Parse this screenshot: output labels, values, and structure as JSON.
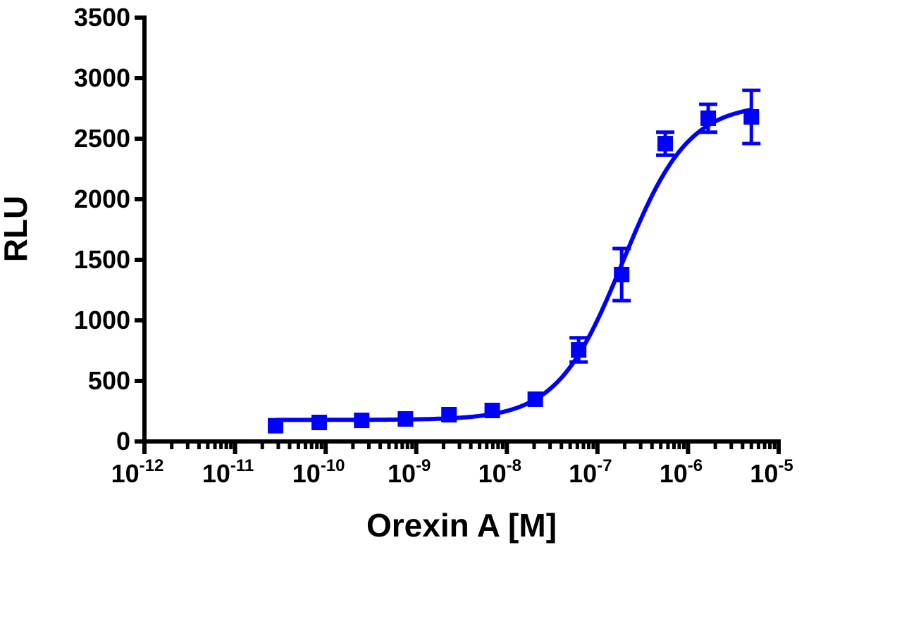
{
  "chart_data": {
    "type": "scatter",
    "title": "",
    "xlabel": "Orexin A [M]",
    "ylabel": "RLU",
    "xscale": "log",
    "xlim": [
      1e-12,
      1e-05
    ],
    "ylim": [
      0,
      3500
    ],
    "x_tick_base": "10",
    "x_tick_exponents": [
      "-12",
      "-11",
      "-10",
      "-9",
      "-8",
      "-7",
      "-6",
      "-5"
    ],
    "y_ticks": [
      "0",
      "500",
      "1000",
      "1500",
      "2000",
      "2500",
      "3000",
      "3500"
    ],
    "grid": false,
    "series": [
      {
        "name": "Orexin A",
        "color": "#0000ff",
        "marker": "square",
        "x": [
          2.8e-11,
          8.5e-11,
          2.5e-10,
          7.6e-10,
          2.3e-09,
          6.9e-09,
          2.06e-08,
          6.2e-08,
          1.85e-07,
          5.6e-07,
          1.67e-06,
          5e-06
        ],
        "y": [
          130,
          157,
          174,
          186,
          221,
          256,
          349,
          756,
          1378,
          2459,
          2669,
          2680
        ],
        "error": [
          0,
          0,
          0,
          0,
          0,
          0,
          0,
          100,
          215,
          95,
          115,
          220
        ]
      }
    ],
    "fit": {
      "model": "4PL",
      "bottom": 178,
      "top": 2790,
      "logEC50": -6.72,
      "hill": 1.2
    }
  }
}
